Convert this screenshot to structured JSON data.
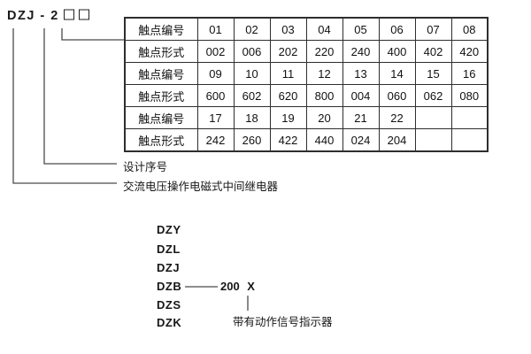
{
  "model": {
    "designation": "DZJ - 2",
    "placeholder_boxes": 2
  },
  "table": {
    "rows": [
      {
        "label": "触点编号",
        "values": [
          "01",
          "02",
          "03",
          "04",
          "05",
          "06",
          "07",
          "08"
        ]
      },
      {
        "label": "触点形式",
        "values": [
          "002",
          "006",
          "202",
          "220",
          "240",
          "400",
          "402",
          "420"
        ]
      },
      {
        "label": "触点编号",
        "values": [
          "09",
          "10",
          "11",
          "12",
          "13",
          "14",
          "15",
          "16"
        ]
      },
      {
        "label": "触点形式",
        "values": [
          "600",
          "602",
          "620",
          "800",
          "004",
          "060",
          "062",
          "080"
        ]
      },
      {
        "label": "触点编号",
        "values": [
          "17",
          "18",
          "19",
          "20",
          "21",
          "22",
          "",
          ""
        ]
      },
      {
        "label": "触点形式",
        "values": [
          "242",
          "260",
          "422",
          "440",
          "024",
          "204",
          "",
          ""
        ]
      }
    ]
  },
  "callouts": {
    "design_serial": "设计序号",
    "relay_description": "交流电压操作电磁式中间继电器"
  },
  "series": {
    "items": [
      "DZY",
      "DZL",
      "DZJ",
      "DZB",
      "DZS",
      "DZK"
    ],
    "dzb_value": "200 X",
    "indicator_note": "带有动作信号指示器"
  },
  "colors": {
    "background": "#ffffff",
    "text": "#1a1a1a",
    "table_border": "#2e2e2e",
    "connector_line": "#4a4a4a"
  }
}
